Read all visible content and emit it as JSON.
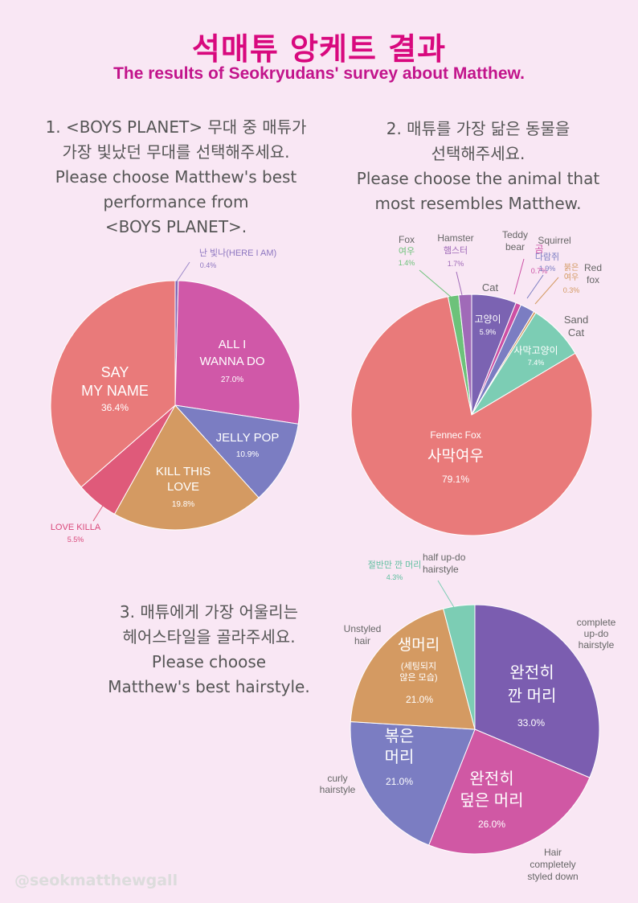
{
  "header": {
    "title": "석매튜 앙케트 결과",
    "subtitle": "The results of Seokryudans' survey about Matthew."
  },
  "questions": [
    {
      "lines": [
        "1. <BOYS PLANET> 무대 중 매튜가",
        "가장 빛났던 무대를 선택해주세요.",
        "Please choose Matthew's best",
        "performance from",
        "<BOYS PLANET>."
      ]
    },
    {
      "lines": [
        "2. 매튜를 가장 닮은 동물을",
        "선택해주세요.",
        "Please choose the animal that",
        "most resembles Matthew."
      ]
    },
    {
      "lines": [
        "3. 매튜에게 가장 어울리는",
        "헤어스타일을 골라주세요.",
        "Please choose",
        "Matthew's best hairstyle."
      ]
    }
  ],
  "chart_data": [
    {
      "type": "pie",
      "title": "1. <BOYS PLANET> 무대 중 매튜가 가장 빛났던 무대를 선택해주세요.",
      "slices": [
        {
          "label": "난 빛나(HERE I AM)",
          "value": 0.4,
          "value_label": "0.4%",
          "color": "#7f68b6"
        },
        {
          "label": "ALL I WANNA DO",
          "value": 27.0,
          "value_label": "27.0%",
          "color": "#d058a8"
        },
        {
          "label": "JELLY POP",
          "value": 10.9,
          "value_label": "10.9%",
          "color": "#7b7dc2"
        },
        {
          "label": "KILL THIS LOVE",
          "value": 19.8,
          "value_label": "19.8%",
          "color": "#d49a62"
        },
        {
          "label": "LOVE KILLA",
          "value": 5.5,
          "value_label": "5.5%",
          "color": "#df5a7a"
        },
        {
          "label": "SAY MY NAME",
          "value": 36.4,
          "value_label": "36.4%",
          "color": "#e97a7a"
        }
      ]
    },
    {
      "type": "pie",
      "title": "2. 매튜를 가장 닮은 동물을 선택해주세요.",
      "slices": [
        {
          "label": "Cat",
          "label_ko": "고양이",
          "value": 5.9,
          "value_label": "5.9%",
          "color": "#7b63b2"
        },
        {
          "label": "Teddy bear",
          "label_ko": "곰",
          "value": 0.7,
          "value_label": "0.7%",
          "color": "#cc4fa4"
        },
        {
          "label": "Squirrel",
          "label_ko": "다람쥐",
          "value": 1.9,
          "value_label": "1.9%",
          "color": "#7b7dc2"
        },
        {
          "label": "Red fox",
          "label_ko": "붉은 여우",
          "value": 0.3,
          "value_label": "0.3%",
          "color": "#d49a62"
        },
        {
          "label": "Sand Cat",
          "label_ko": "사막고양이",
          "value": 7.4,
          "value_label": "7.4%",
          "color": "#7ccdb4"
        },
        {
          "label": "Fennec Fox",
          "label_ko": "사막여우",
          "value": 79.1,
          "value_label": "79.1%",
          "color": "#e97a7a"
        },
        {
          "label": "Fox",
          "label_ko": "여우",
          "value": 1.4,
          "value_label": "1.4%",
          "color": "#6dc27a"
        },
        {
          "label": "Hamster",
          "label_ko": "햄스터",
          "value": 1.7,
          "value_label": "1.7%",
          "color": "#a06ab8"
        }
      ]
    },
    {
      "type": "pie",
      "title": "3. 매튜에게 가장 어울리는 헤어스타일을 골라주세요.",
      "slices": [
        {
          "label": "complete up-do hairstyle",
          "label_ko": "완전히 깐 머리",
          "value": 33.0,
          "value_label": "33.0%",
          "color": "#7b5db0"
        },
        {
          "label": "Hair completely styled down",
          "label_ko": "완전히 덮은 머리",
          "value": 26.0,
          "value_label": "26.0%",
          "color": "#d058a4"
        },
        {
          "label": "curly hairstyle",
          "label_ko": "볶은 머리",
          "value": 21.0,
          "value_label": "21.0%",
          "color": "#7b7dc2"
        },
        {
          "label": "Unstyled hair",
          "label_ko": "생머리",
          "note_ko": "(세팅되지 않은 모습)",
          "value": 21.0,
          "value_label": "21.0%",
          "color": "#d49a62"
        },
        {
          "label": "half up-do hairstyle",
          "label_ko": "절반만 깐 머리",
          "value": 4.3,
          "value_label": "4.3%",
          "color": "#7ccdb4"
        }
      ]
    }
  ],
  "watermark": "@seokmatthewgall"
}
